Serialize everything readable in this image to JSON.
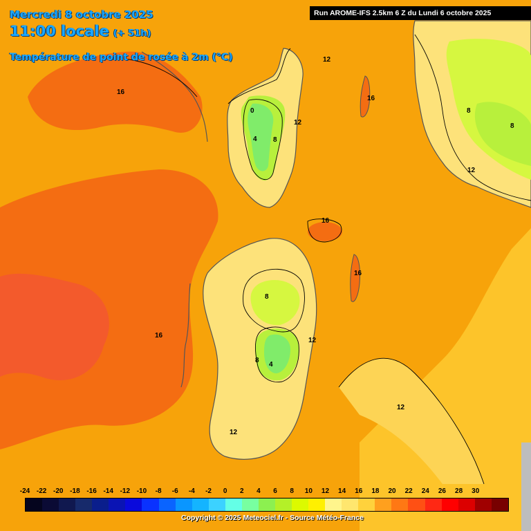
{
  "header": {
    "date": "Mercredi 8 octobre 2025",
    "time": "11:00 locale",
    "lead": "(+ 51h)",
    "variable": "Température de point de rosée à 2m (°C)",
    "run": "Run AROME-IFS 2.5km 6 Z du Lundi 6 octobre 2025"
  },
  "contour_labels": [
    "16",
    "16",
    "16",
    "16",
    "16",
    "12",
    "12",
    "12",
    "12",
    "12",
    "12",
    "8",
    "8",
    "8",
    "8",
    "8",
    "4",
    "4",
    "0"
  ],
  "scale": {
    "labels": [
      "-24",
      "-22",
      "-20",
      "-18",
      "-16",
      "-14",
      "-12",
      "-10",
      "-8",
      "-6",
      "-4",
      "-2",
      "0",
      "2",
      "4",
      "6",
      "8",
      "10",
      "12",
      "14",
      "16",
      "18",
      "20",
      "22",
      "24",
      "26",
      "28",
      "30"
    ],
    "colors": [
      "#05051e",
      "#0b0b35",
      "#10184f",
      "#172a6b",
      "#0a1e8c",
      "#0a14b4",
      "#0a0adc",
      "#0a32ff",
      "#0a64ff",
      "#0a96ff",
      "#14b4ff",
      "#3cd2ff",
      "#64ffe6",
      "#78ffa0",
      "#8cf050",
      "#b4f028",
      "#dcfa00",
      "#fff000",
      "#fff58c",
      "#ffe66e",
      "#ffd23c",
      "#ffa01e",
      "#ff7814",
      "#ff5014",
      "#ff2814",
      "#ff0000",
      "#dc0000",
      "#a00000",
      "#780000"
    ]
  },
  "copyright": "Copyright © 2025 Meteociel.fr - Source Météo-France",
  "colors": {
    "base": "#f7a30a",
    "dark_orange": "#f46d12",
    "red_orange": "#f35a2c",
    "light_yellow": "#fde27a",
    "yellow_green": "#dcf54a",
    "green": "#8ef06a",
    "title_blue": "#1aa7ff"
  }
}
